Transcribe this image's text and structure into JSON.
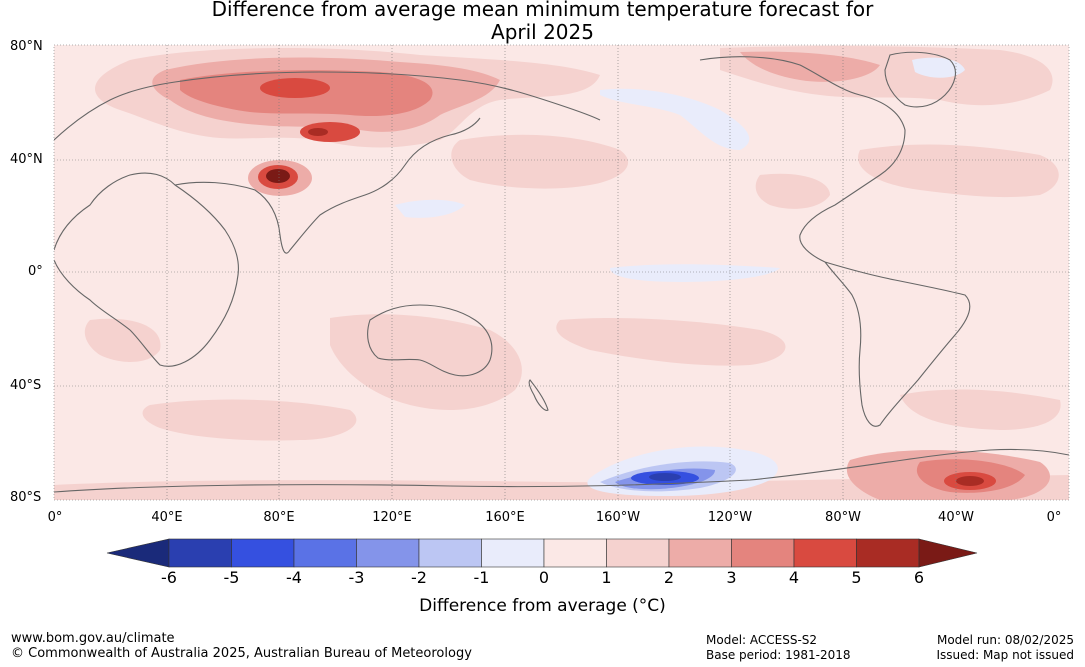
{
  "title": {
    "line1": "Difference from average mean minimum temperature forecast for",
    "line2": "April 2025"
  },
  "map": {
    "latitude_labels": [
      "80°N",
      "40°N",
      "0°",
      "40°S",
      "80°S"
    ],
    "longitude_labels": [
      "0°",
      "40°E",
      "80°E",
      "120°E",
      "160°E",
      "160°W",
      "120°W",
      "80°W",
      "40°W",
      "0°"
    ]
  },
  "colorbar": {
    "ticks": [
      "-6",
      "-5",
      "-4",
      "-3",
      "-2",
      "-1",
      "0",
      "1",
      "2",
      "3",
      "4",
      "5",
      "6"
    ],
    "colors": [
      "#1a2a7a",
      "#2a3fb0",
      "#3550e0",
      "#5a72e6",
      "#8494ea",
      "#bcc6f3",
      "#e9ecfb",
      "#fbe8e6",
      "#f5d2cf",
      "#edaca8",
      "#e4847e",
      "#d94a40",
      "#a92c24",
      "#7a1a16"
    ],
    "label": "Difference from average (°C)"
  },
  "footer": {
    "website": "www.bom.gov.au/climate",
    "copyright": "© Commonwealth of Australia 2025, Australian Bureau of Meteorology",
    "model": "Model: ACCESS-S2",
    "base_period": "Base period: 1981-2018",
    "model_run": "Model run: 08/02/2025",
    "issued": "Issued: Map not issued"
  }
}
